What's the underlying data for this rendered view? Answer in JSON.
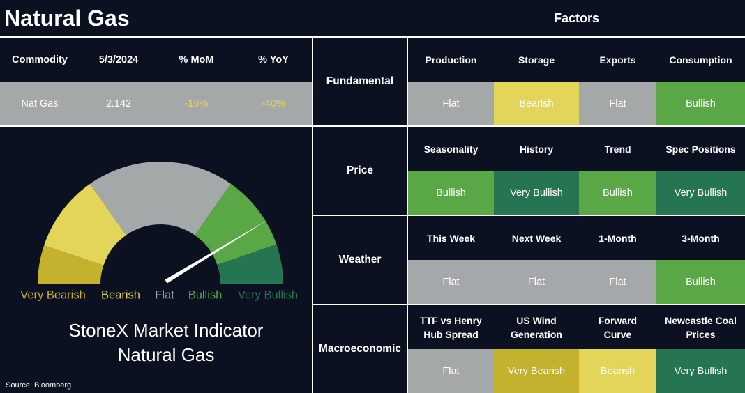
{
  "header": {
    "title": "Natural Gas",
    "factors_title": "Factors"
  },
  "summary": {
    "columns": [
      "Commodity",
      "5/3/2024",
      "% MoM",
      "% YoY"
    ],
    "row": [
      "Nat Gas",
      "2.142",
      "-16%",
      "-40%"
    ]
  },
  "rating_colors": {
    "Very Bearish": "#c4b22f",
    "Bearish": "#e2d55a",
    "Flat": "#a5a8a8",
    "Bullish": "#5aa845",
    "Very Bullish": "#267552"
  },
  "gauge": {
    "labels": [
      "Very Bearish",
      "Bearish",
      "Flat",
      "Bullish",
      "Very Bullish"
    ],
    "title_lines": [
      "StoneX Market Indicator",
      "Natural Gas"
    ]
  },
  "source": "Source: Bloomberg",
  "factors": [
    {
      "category": "Fundamental",
      "items": [
        {
          "name": "Production",
          "rating": "Flat"
        },
        {
          "name": "Storage",
          "rating": "Bearish"
        },
        {
          "name": "Exports",
          "rating": "Flat"
        },
        {
          "name": "Consumption",
          "rating": "Bullish"
        }
      ]
    },
    {
      "category": "Price",
      "items": [
        {
          "name": "Seasonality",
          "rating": "Bullish"
        },
        {
          "name": "History",
          "rating": "Very Bullish"
        },
        {
          "name": "Trend",
          "rating": "Bullish"
        },
        {
          "name": "Spec Positions",
          "rating": "Very Bullish"
        }
      ]
    },
    {
      "category": "Weather",
      "items": [
        {
          "name": "This Week",
          "rating": "Flat"
        },
        {
          "name": "Next Week",
          "rating": "Flat"
        },
        {
          "name": "1-Month",
          "rating": "Flat"
        },
        {
          "name": "3-Month",
          "rating": "Bullish"
        }
      ]
    },
    {
      "category": "Macroeconomic",
      "items": [
        {
          "name": "TTF vs Henry\nHub Spread",
          "rating": "Flat"
        },
        {
          "name": "US Wind\nGeneration",
          "rating": "Very Bearish"
        },
        {
          "name": "Forward\nCurve",
          "rating": "Bearish"
        },
        {
          "name": "Newcastle Coal\nPrices",
          "rating": "Very Bullish"
        }
      ]
    }
  ]
}
